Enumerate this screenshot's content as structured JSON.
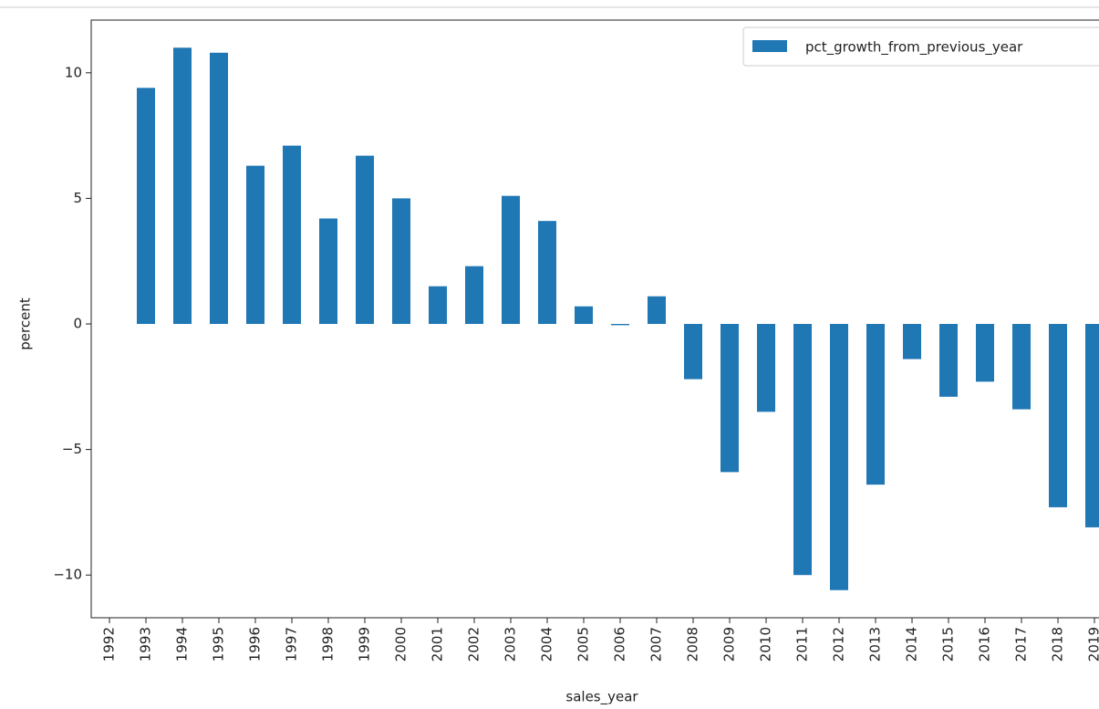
{
  "chart_data": {
    "type": "bar",
    "xlabel": "sales_year",
    "ylabel": "percent",
    "categories": [
      "1992",
      "1993",
      "1994",
      "1995",
      "1996",
      "1997",
      "1998",
      "1999",
      "2000",
      "2001",
      "2002",
      "2003",
      "2004",
      "2005",
      "2006",
      "2007",
      "2008",
      "2009",
      "2010",
      "2011",
      "2012",
      "2013",
      "2014",
      "2015",
      "2016",
      "2017",
      "2018",
      "2019"
    ],
    "series": [
      {
        "name": "pct_growth_from_previous_year",
        "color": "#1f77b4",
        "values": [
          null,
          9.4,
          11.0,
          10.8,
          6.3,
          7.1,
          4.2,
          6.7,
          5.0,
          1.5,
          2.3,
          5.1,
          4.1,
          0.7,
          -0.05,
          1.1,
          -2.2,
          -5.9,
          -3.5,
          -10.0,
          -10.6,
          -6.4,
          -1.4,
          -2.9,
          -2.3,
          -3.4,
          -7.3,
          -8.1
        ]
      }
    ],
    "ylim": [
      -11.7,
      12.1
    ],
    "yticks": [
      {
        "value": -10,
        "label": "−10"
      },
      {
        "value": -5,
        "label": "−5"
      },
      0,
      5,
      10
    ],
    "legend": "upper right"
  }
}
